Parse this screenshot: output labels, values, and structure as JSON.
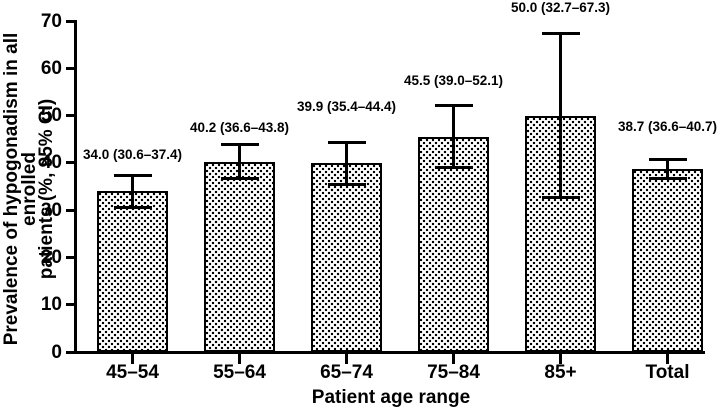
{
  "chart_data": {
    "type": "bar",
    "title": "",
    "xlabel": "Patient age range",
    "ylabel": "Prevalence of hypogonadism in all enrolled patients (%, 95% CI)",
    "ylabel_lines": [
      "Prevalence of hypogonadism in all enrolled",
      "patients (%, 95% CI)"
    ],
    "categories": [
      "45–54",
      "55–64",
      "65–74",
      "75–84",
      "85+",
      "Total"
    ],
    "values": [
      34.0,
      40.2,
      39.9,
      45.5,
      50.0,
      38.7
    ],
    "ci_lower": [
      30.6,
      36.6,
      35.4,
      39.0,
      32.7,
      36.6
    ],
    "ci_upper": [
      37.4,
      43.8,
      44.4,
      52.1,
      67.3,
      40.7
    ],
    "bar_labels": [
      "34.0 (30.6–37.4)",
      "40.2 (36.6–43.8)",
      "39.9 (35.4–44.4)",
      "45.5 (39.0–52.1)",
      "50.0 (32.7–67.3)",
      "38.7 (36.6–40.7)"
    ],
    "y_ticks": [
      0,
      10,
      20,
      30,
      40,
      50,
      60,
      70
    ],
    "ylim": [
      0,
      70
    ],
    "grid": false,
    "legend": null,
    "bar_fill": "black-stipple-dot-pattern-on-white",
    "error_bars": "95% CI caps top and bottom",
    "colors": {
      "foreground": "#000000",
      "background": "#ffffff"
    }
  }
}
